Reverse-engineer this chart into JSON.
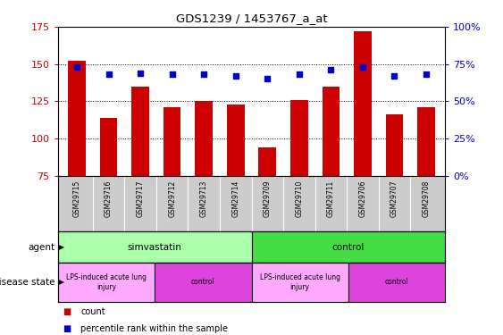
{
  "title": "GDS1239 / 1453767_a_at",
  "samples": [
    "GSM29715",
    "GSM29716",
    "GSM29717",
    "GSM29712",
    "GSM29713",
    "GSM29714",
    "GSM29709",
    "GSM29710",
    "GSM29711",
    "GSM29706",
    "GSM29707",
    "GSM29708"
  ],
  "counts": [
    152,
    114,
    135,
    121,
    125,
    123,
    94,
    126,
    135,
    172,
    116,
    121
  ],
  "percentiles": [
    73,
    68,
    69,
    68,
    68,
    67,
    65,
    68,
    71,
    73,
    67,
    68
  ],
  "ylim_left": [
    75,
    175
  ],
  "ylim_right": [
    0,
    100
  ],
  "yticks_left": [
    75,
    100,
    125,
    150,
    175
  ],
  "yticks_right": [
    0,
    25,
    50,
    75,
    100
  ],
  "bar_color": "#cc0000",
  "dot_color": "#0000cc",
  "bar_width": 0.55,
  "agent_groups": [
    {
      "label": "simvastatin",
      "start": 0,
      "end": 6,
      "color": "#aaffaa"
    },
    {
      "label": "control",
      "start": 6,
      "end": 12,
      "color": "#44dd44"
    }
  ],
  "disease_groups": [
    {
      "label": "LPS-induced acute lung\ninjury",
      "start": 0,
      "end": 3,
      "color": "#ffaaff"
    },
    {
      "label": "control",
      "start": 3,
      "end": 6,
      "color": "#dd44dd"
    },
    {
      "label": "LPS-induced acute lung\ninjury",
      "start": 6,
      "end": 9,
      "color": "#ffaaff"
    },
    {
      "label": "control",
      "start": 9,
      "end": 12,
      "color": "#dd44dd"
    }
  ],
  "agent_label": "agent",
  "disease_label": "disease state",
  "legend_count_label": "count",
  "legend_pct_label": "percentile rank within the sample",
  "grid_color": "black",
  "tick_label_color_left": "#cc0000",
  "tick_label_color_right": "#0000cc",
  "sample_bg_color": "#cccccc",
  "border_color": "black",
  "hgrid_lines": [
    100,
    125,
    150
  ]
}
